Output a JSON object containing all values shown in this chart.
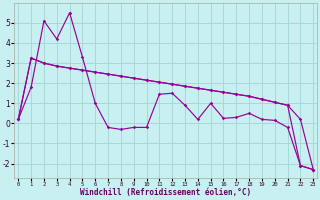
{
  "bg_color": "#c8f0f0",
  "grid_color": "#a8d8d8",
  "line_color": "#990099",
  "xlim": [
    -0.3,
    23.3
  ],
  "ylim": [
    -2.7,
    6.0
  ],
  "xticks": [
    0,
    1,
    2,
    3,
    4,
    5,
    6,
    7,
    8,
    9,
    10,
    11,
    12,
    13,
    14,
    15,
    16,
    17,
    18,
    19,
    20,
    21,
    22,
    23
  ],
  "yticks": [
    -2,
    -1,
    0,
    1,
    2,
    3,
    4,
    5
  ],
  "xlabel": "Windchill (Refroidissement éolien,°C)",
  "series1": [
    0.2,
    1.8,
    5.1,
    4.2,
    5.5,
    3.3,
    1.0,
    -0.2,
    -0.3,
    -0.2,
    -0.2,
    1.45,
    1.5,
    0.9,
    0.2,
    1.0,
    0.25,
    0.3,
    0.5,
    0.2,
    0.15,
    -0.2,
    -2.1,
    -2.3
  ],
  "series2": [
    0.2,
    3.25,
    3.0,
    2.85,
    2.75,
    2.65,
    2.55,
    2.45,
    2.35,
    2.25,
    2.15,
    2.05,
    1.95,
    1.85,
    1.75,
    1.65,
    1.55,
    1.45,
    1.35,
    1.2,
    1.05,
    0.9,
    -2.1,
    -2.3
  ],
  "series3": [
    0.2,
    3.25,
    3.0,
    2.85,
    2.75,
    2.65,
    2.55,
    2.45,
    2.35,
    2.25,
    2.15,
    2.05,
    1.95,
    1.85,
    1.75,
    1.65,
    1.55,
    1.45,
    1.35,
    1.2,
    1.05,
    0.9,
    0.2,
    -2.3
  ]
}
